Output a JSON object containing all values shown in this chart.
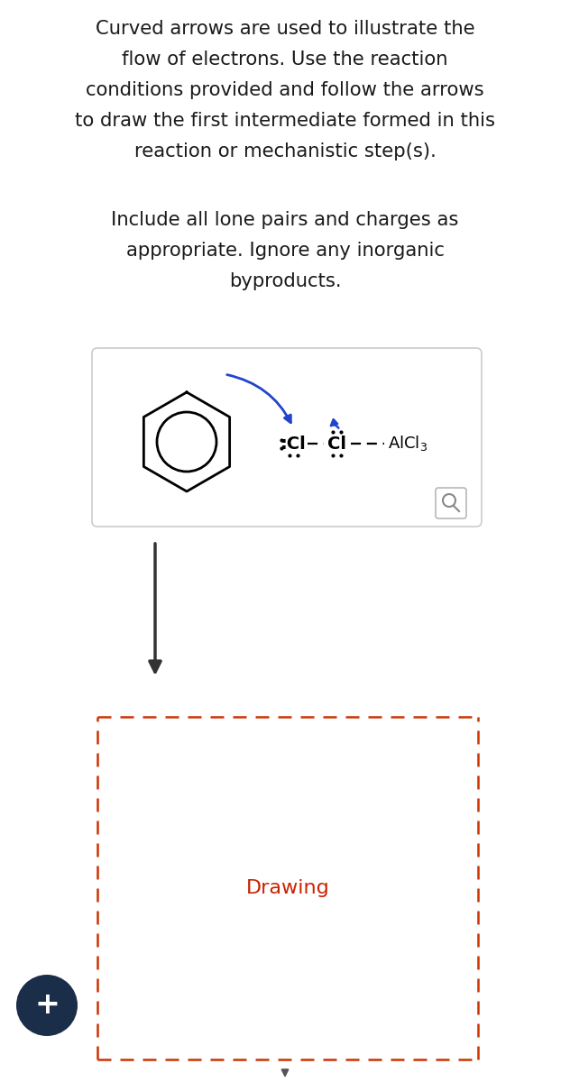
{
  "bg_color": "#ffffff",
  "text_color": "#1a1a1a",
  "title_lines": [
    "Curved arrows are used to illustrate the",
    "flow of electrons. Use the reaction",
    "conditions provided and follow the arrows",
    "to draw the first intermediate formed in this",
    "reaction or mechanistic step(s)."
  ],
  "subtitle_lines": [
    "Include all lone pairs and charges as",
    "appropriate. Ignore any inorganic",
    "byproducts."
  ],
  "drawing_text": "Drawing",
  "drawing_text_color": "#cc2200",
  "arrow_color": "#2244cc",
  "box_border": "#cccccc",
  "dashed_border_color": "#cc3300",
  "down_arrow_color": "#333333",
  "plus_bg": "#1a2e4a",
  "plus_color": "#ffffff"
}
